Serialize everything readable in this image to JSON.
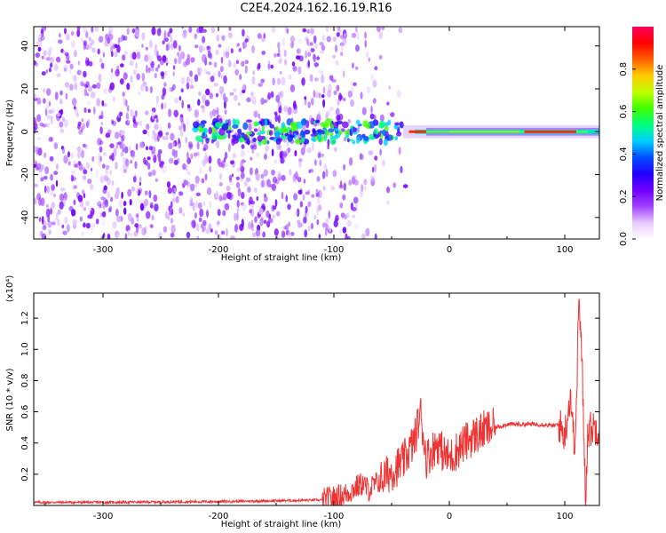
{
  "title": "C2E4.2024.162.16.19.R16",
  "chart_data": [
    {
      "type": "heatmap",
      "xlabel": "Height of straight line (km)",
      "ylabel": "Frequency (Hz)",
      "xlim": [
        -360,
        130
      ],
      "ylim": [
        -50,
        49
      ],
      "xticks": [
        -300,
        -200,
        -100,
        0,
        100
      ],
      "yticks": [
        -40,
        -20,
        0,
        20,
        40
      ],
      "colorbar": {
        "label": "Normalized spectral amplitude",
        "ticks": [
          "0.0",
          "0.2",
          "0.4",
          "0.6",
          "0.8"
        ],
        "range": [
          0,
          1
        ],
        "colormap": [
          "#ffffff",
          "#e8c8ff",
          "#a040ff",
          "#7000ff",
          "#2000ff",
          "#0050ff",
          "#00d0ff",
          "#00ff80",
          "#40ff00",
          "#c0ff00",
          "#ffcc00",
          "#ff6000",
          "#ff0000",
          "#ff0060"
        ]
      },
      "features": {
        "noise_region_x": [
          -360,
          -75
        ],
        "central_band_freq_hz": 0,
        "strong_band_x": [
          -40,
          130
        ],
        "peak_segments_x": [
          [
            -35,
            -20
          ],
          [
            65,
            110
          ]
        ]
      }
    },
    {
      "type": "line",
      "xlabel": "Height of straight line (km)",
      "ylabel": "SNR (10 * v/v)",
      "yscale_label": "(x10⁴)",
      "xlim": [
        -360,
        130
      ],
      "ylim": [
        0,
        1.36
      ],
      "xticks": [
        -300,
        -200,
        -100,
        0,
        100
      ],
      "yticks": [
        0.2,
        0.4,
        0.6,
        0.8,
        1.0,
        1.2
      ],
      "ytick_labels": [
        "0.2",
        "0.4",
        "0.6",
        "0.8",
        "1.0",
        "1.2"
      ],
      "line_color": "#ee3333",
      "series": [
        {
          "x": [
            -360,
            -300,
            -200,
            -150,
            -110,
            -100,
            -90,
            -80,
            -75,
            -70,
            -60,
            -50,
            -40,
            -35,
            -30,
            -25,
            -20,
            -15,
            -10,
            -5,
            0,
            10,
            20,
            30,
            40,
            50,
            60,
            70,
            80,
            90,
            95,
            100,
            105,
            108,
            110,
            112,
            115,
            118,
            120,
            125,
            130
          ],
          "y": [
            0.02,
            0.02,
            0.025,
            0.03,
            0.035,
            0.05,
            0.07,
            0.12,
            0.14,
            0.1,
            0.16,
            0.22,
            0.28,
            0.35,
            0.42,
            0.6,
            0.3,
            0.35,
            0.4,
            0.33,
            0.3,
            0.38,
            0.44,
            0.48,
            0.5,
            0.52,
            0.52,
            0.52,
            0.52,
            0.51,
            0.52,
            0.45,
            0.72,
            0.4,
            0.55,
            1.35,
            0.9,
            0.05,
            0.48,
            0.5,
            0.5
          ]
        }
      ]
    }
  ]
}
